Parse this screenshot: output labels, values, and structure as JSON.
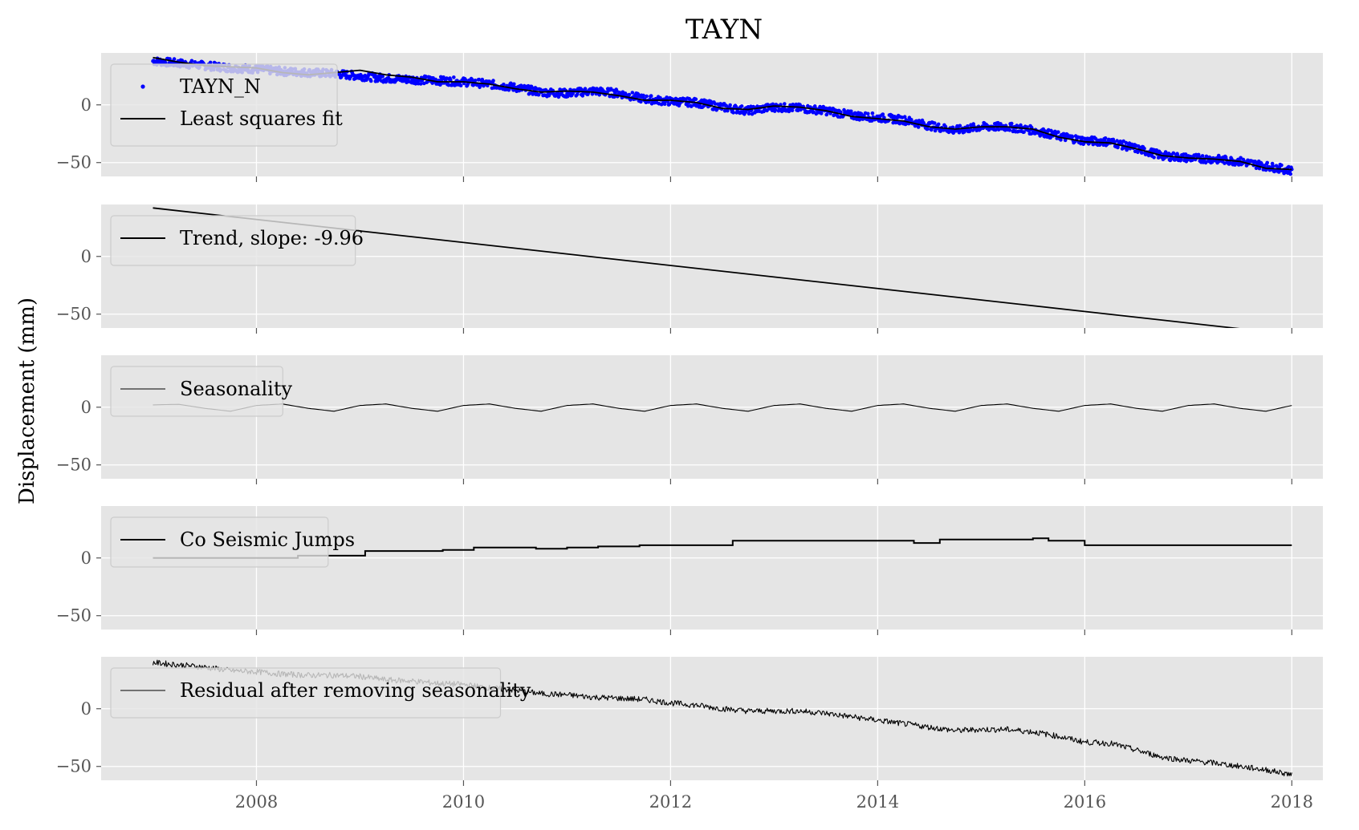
{
  "chart_data": {
    "type": "line",
    "title": "TAYN",
    "ylabel": "Displacement (mm)",
    "xlim": [
      2006.5,
      2018.3
    ],
    "x_ticks": [
      2008,
      2010,
      2012,
      2014,
      2016,
      2018
    ],
    "y_ticks": [
      0,
      -50
    ],
    "grid": true,
    "panels": [
      {
        "id": "observed",
        "ylim": [
          -62,
          45
        ],
        "legend": "upper-left",
        "series": [
          {
            "name": "TAYN_N",
            "style": "scatter",
            "color": "#0000ff",
            "x": [
              2007.0,
              2007.25,
              2007.5,
              2007.75,
              2008.0,
              2008.25,
              2008.5,
              2008.75,
              2009.0,
              2009.25,
              2009.5,
              2009.75,
              2010.0,
              2010.25,
              2010.5,
              2010.75,
              2011.0,
              2011.25,
              2011.5,
              2011.75,
              2012.0,
              2012.25,
              2012.5,
              2012.75,
              2013.0,
              2013.25,
              2013.5,
              2013.75,
              2014.0,
              2014.25,
              2014.5,
              2014.75,
              2015.0,
              2015.25,
              2015.5,
              2015.75,
              2016.0,
              2016.25,
              2016.5,
              2016.75,
              2017.0,
              2017.25,
              2017.5,
              2017.75,
              2018.0
            ],
            "y": [
              38,
              36,
              34,
              32,
              31,
              29,
              28,
              27,
              25,
              23,
              22,
              21,
              20,
              18,
              15,
              11,
              10,
              12,
              10,
              5,
              3,
              2,
              -2,
              -5,
              -2,
              -3,
              -5,
              -9,
              -11,
              -13,
              -18,
              -22,
              -19,
              -19,
              -22,
              -27,
              -31,
              -32,
              -38,
              -44,
              -46,
              -47,
              -49,
              -53,
              -57
            ]
          },
          {
            "name": "Least squares fit",
            "style": "line",
            "color": "#000000",
            "x": [
              2007.0,
              2007.25,
              2007.5,
              2007.75,
              2008.0,
              2008.25,
              2008.5,
              2008.75,
              2009.0,
              2009.25,
              2009.5,
              2009.75,
              2010.0,
              2010.25,
              2010.5,
              2010.75,
              2011.0,
              2011.25,
              2011.5,
              2011.75,
              2012.0,
              2012.25,
              2012.5,
              2012.75,
              2013.0,
              2013.25,
              2013.5,
              2013.75,
              2014.0,
              2014.25,
              2014.5,
              2014.75,
              2015.0,
              2015.25,
              2015.5,
              2015.75,
              2016.0,
              2016.25,
              2016.5,
              2016.75,
              2017.0,
              2017.25,
              2017.5,
              2017.75,
              2018.0
            ],
            "y": [
              41,
              37,
              34,
              33,
              32,
              28,
              26,
              28,
              30,
              26,
              24,
              20,
              20,
              18,
              14,
              11,
              12,
              11,
              8,
              4,
              4,
              2,
              -3,
              -4,
              -1,
              -2,
              -5,
              -10,
              -12,
              -14,
              -19,
              -21,
              -19,
              -19,
              -21,
              -28,
              -32,
              -33,
              -38,
              -44,
              -46,
              -47,
              -49,
              -55,
              -56
            ]
          }
        ]
      },
      {
        "id": "trend",
        "ylim": [
          -62,
          45
        ],
        "legend": "upper-left",
        "series": [
          {
            "name": "Trend, slope: -9.96",
            "style": "line",
            "color": "#000000",
            "x": [
              2007.0,
              2018.0
            ],
            "y": [
              42,
              -67.6
            ]
          }
        ]
      },
      {
        "id": "seasonality",
        "ylim": [
          -62,
          45
        ],
        "legend": "upper-left",
        "series": [
          {
            "name": "Seasonality",
            "style": "line",
            "color": "#000000",
            "x": [
              2007.0,
              2007.25,
              2007.5,
              2007.75,
              2008.0,
              2008.25,
              2008.5,
              2008.75,
              2009.0,
              2009.25,
              2009.5,
              2009.75,
              2010.0,
              2010.25,
              2010.5,
              2010.75,
              2011.0,
              2011.25,
              2011.5,
              2011.75,
              2012.0,
              2012.25,
              2012.5,
              2012.75,
              2013.0,
              2013.25,
              2013.5,
              2013.75,
              2014.0,
              2014.25,
              2014.5,
              2014.75,
              2015.0,
              2015.25,
              2015.5,
              2015.75,
              2016.0,
              2016.25,
              2016.5,
              2016.75,
              2017.0,
              2017.25,
              2017.5,
              2017.75,
              2018.0
            ],
            "y": [
              2,
              2.5,
              -1,
              -3.5,
              1.5,
              2.8,
              -1,
              -3.5,
              1.5,
              2.8,
              -1,
              -3.5,
              1.5,
              2.8,
              -1,
              -3.5,
              1.5,
              2.8,
              -1,
              -3.5,
              1.5,
              2.8,
              -1,
              -3.5,
              1.5,
              2.8,
              -1,
              -3.5,
              1.5,
              2.8,
              -1,
              -3.5,
              1.5,
              2.8,
              -1,
              -3.5,
              1.5,
              2.8,
              -1,
              -3.5,
              1.5,
              2.8,
              -1,
              -3.5,
              1.5
            ]
          }
        ]
      },
      {
        "id": "coseismic",
        "ylim": [
          -62,
          45
        ],
        "legend": "upper-left",
        "series": [
          {
            "name": "Co Seismic Jumps",
            "style": "step",
            "color": "#000000",
            "x": [
              2007.0,
              2008.4,
              2009.05,
              2009.8,
              2010.1,
              2010.7,
              2011.0,
              2011.3,
              2011.7,
              2012.0,
              2012.6,
              2014.1,
              2014.35,
              2014.6,
              2015.5,
              2015.65,
              2016.0,
              2018.0
            ],
            "y": [
              0,
              2,
              6,
              7,
              9,
              8,
              9,
              10,
              11,
              11,
              15,
              15,
              13,
              16,
              17,
              15,
              11,
              11
            ]
          }
        ]
      },
      {
        "id": "residual",
        "ylim": [
          -62,
          45
        ],
        "legend": "upper-left",
        "series": [
          {
            "name": "Residual after removing seasonality",
            "style": "line",
            "color": "#000000",
            "x": [
              2007.0,
              2007.25,
              2007.5,
              2007.75,
              2008.0,
              2008.25,
              2008.5,
              2008.75,
              2009.0,
              2009.25,
              2009.5,
              2009.75,
              2010.0,
              2010.25,
              2010.5,
              2010.75,
              2011.0,
              2011.25,
              2011.5,
              2011.75,
              2012.0,
              2012.25,
              2012.5,
              2012.75,
              2013.0,
              2013.25,
              2013.5,
              2013.75,
              2014.0,
              2014.25,
              2014.5,
              2014.75,
              2015.0,
              2015.25,
              2015.5,
              2015.75,
              2016.0,
              2016.25,
              2016.5,
              2016.75,
              2017.0,
              2017.25,
              2017.5,
              2017.75,
              2018.0
            ],
            "y": [
              40,
              38,
              36,
              33,
              32,
              30,
              29,
              29,
              28,
              25,
              24,
              22,
              21,
              18,
              16,
              13,
              12,
              10,
              9,
              8,
              5,
              3,
              0,
              -2,
              -2,
              -2,
              -4,
              -7,
              -10,
              -13,
              -16,
              -19,
              -18,
              -18,
              -20,
              -24,
              -29,
              -30,
              -36,
              -42,
              -45,
              -47,
              -50,
              -53,
              -57
            ]
          }
        ]
      }
    ]
  }
}
